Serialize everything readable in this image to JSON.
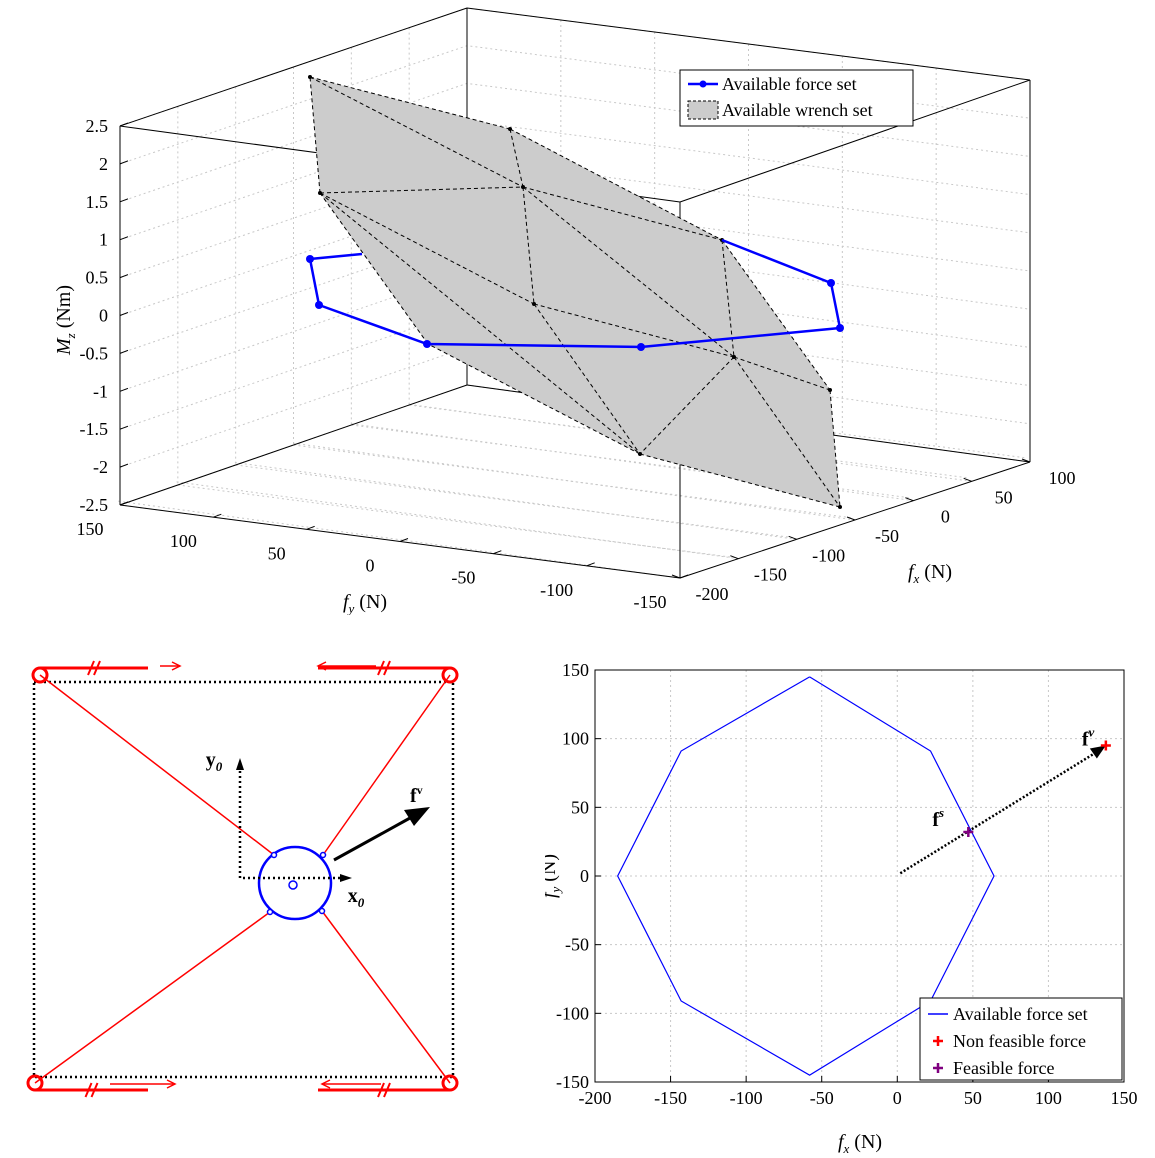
{
  "chart_data": [
    {
      "type": "surface3d",
      "zlabel": "M",
      "zlabel_sub": "z",
      "zlabel_unit": "(Nm)",
      "xlabel": "f",
      "xlabel_sub": "x",
      "xlabel_unit": "(N)",
      "ylabel": "f",
      "ylabel_sub": "y",
      "ylabel_unit": "(N)",
      "z_ticks": [
        "2.5",
        "2",
        "1.5",
        "1",
        "0.5",
        "0",
        "-0.5",
        "-1",
        "-1.5",
        "-2",
        "-2.5"
      ],
      "fy_ticks": [
        "150",
        "100",
        "50",
        "0",
        "-50",
        "-100",
        "-150"
      ],
      "fx_ticks": [
        "100",
        "50",
        "0",
        "-50",
        "-100",
        "-150",
        "-200"
      ],
      "zlim": [
        -2.5,
        2.5
      ],
      "xlim": [
        -200,
        100
      ],
      "ylim": [
        -150,
        150
      ],
      "grid": true,
      "legend_position": "top-right",
      "legend": [
        "Available force set",
        "Available wrench set"
      ],
      "series": [
        {
          "name": "Available force set",
          "color": "#0000ff"
        },
        {
          "name": "Available wrench set",
          "color": "#c8c8c8"
        }
      ]
    },
    {
      "type": "diagram",
      "labels": {
        "y0": "y",
        "y0_sub": "0",
        "x0": "x",
        "x0_sub": "0",
        "force": "f",
        "force_sup": "v"
      },
      "cable_color": "#ff0000",
      "platform_color": "#0000ff"
    },
    {
      "type": "line",
      "xlabel": "f",
      "xlabel_sub": "x",
      "xlabel_unit": "(N)",
      "ylabel": "f",
      "ylabel_sub": "y",
      "ylabel_unit": "(N)",
      "xlim": [
        -200,
        150
      ],
      "ylim": [
        -150,
        150
      ],
      "x_ticks": [
        "-200",
        "-150",
        "-100",
        "-50",
        "0",
        "50",
        "100",
        "150"
      ],
      "y_ticks": [
        "150",
        "100",
        "50",
        "0",
        "-50",
        "-100",
        "-150"
      ],
      "grid": true,
      "legend_position": "bottom-right",
      "legend": [
        "Available force set",
        "Non feasible force",
        "Feasible force"
      ],
      "series": [
        {
          "name": "Available force set",
          "color": "#0000ff",
          "x": [
            -58,
            22,
            64,
            22,
            -58,
            -143,
            -185,
            -143,
            -58
          ],
          "y": [
            145,
            91,
            0,
            -91,
            -145,
            -91,
            0,
            91,
            145
          ]
        },
        {
          "name": "Non feasible force",
          "color": "#ff0000",
          "x": [
            138
          ],
          "y": [
            95
          ]
        },
        {
          "name": "Feasible force",
          "color": "#800080",
          "x": [
            47
          ],
          "y": [
            32
          ]
        }
      ],
      "annotations": [
        {
          "text": "f",
          "sup": "v",
          "x": 138,
          "y": 95
        },
        {
          "text": "f",
          "sup": "s",
          "x": 47,
          "y": 32
        }
      ],
      "arrow": {
        "from": [
          2,
          2
        ],
        "to": [
          138,
          95
        ]
      }
    }
  ]
}
